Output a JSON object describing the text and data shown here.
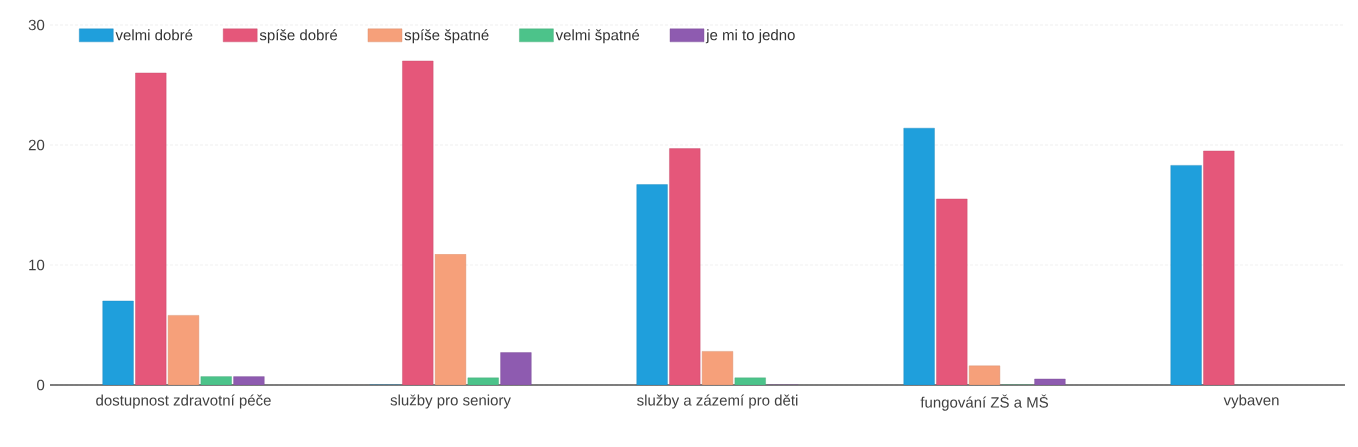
{
  "chart_data": {
    "type": "bar",
    "categories": [
      "dostupnost zdravotní péče",
      "služby pro seniory",
      "služby a zázemí pro děti",
      "fungování ZŠ a MŠ",
      "vybaven"
    ],
    "series": [
      {
        "name": "velmi dobré",
        "color": "#1f9fdc",
        "values": [
          7,
          0,
          16.7,
          21.4,
          18.3
        ]
      },
      {
        "name": "spíše dobré",
        "color": "#e5577a",
        "values": [
          26,
          27,
          19.7,
          15.5,
          19.5
        ]
      },
      {
        "name": "spíše špatné",
        "color": "#f6a07a",
        "values": [
          5.8,
          10.9,
          2.8,
          1.6,
          null
        ]
      },
      {
        "name": "velmi špatné",
        "color": "#4cc38a",
        "values": [
          0.7,
          0.6,
          0.6,
          0,
          null
        ]
      },
      {
        "name": "je mi to jedno",
        "color": "#8e5bb0",
        "values": [
          0.7,
          2.7,
          0,
          0.5,
          null
        ]
      }
    ],
    "ylim": [
      0,
      30
    ],
    "yticks": [
      0,
      10,
      20,
      30
    ],
    "grid": "y",
    "legend": "top"
  }
}
